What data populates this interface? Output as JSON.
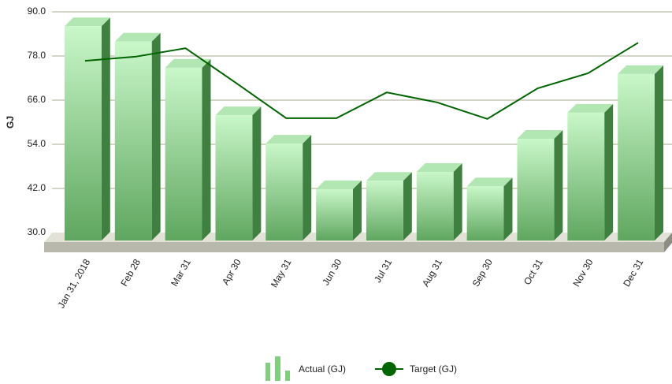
{
  "chart_data": {
    "type": "bar",
    "y_label": "GJ",
    "categories": [
      "Jan 31, 2018",
      "Feb 28",
      "Mar 31",
      "Apr 30",
      "May 31",
      "Jun 30",
      "Jul 31",
      "Aug 31",
      "Sep 30",
      "Oct 31",
      "Nov 30",
      "Dec 31"
    ],
    "series": [
      {
        "name": "Actual (GJ)",
        "type": "bar",
        "color": "#7fcf7f",
        "values": [
          86.1,
          81.9,
          74.8,
          61.9,
          54.2,
          41.8,
          44.1,
          46.5,
          42.6,
          55.5,
          62.6,
          73.1
        ]
      },
      {
        "name": "Target (GJ)",
        "type": "line",
        "color": "#006400",
        "values": [
          76.7,
          77.8,
          80.1,
          70.7,
          61.1,
          61.1,
          68.1,
          65.4,
          60.9,
          69.2,
          73.3,
          81.6
        ]
      }
    ],
    "ylim": [
      30,
      90
    ],
    "yticks": [
      {
        "value": 30,
        "label": "30.0"
      },
      {
        "value": 42,
        "label": "42.0"
      },
      {
        "value": 54,
        "label": "54.0"
      },
      {
        "value": 66,
        "label": "66.0"
      },
      {
        "value": 78,
        "label": "78.0"
      },
      {
        "value": 90,
        "label": "90.0"
      }
    ],
    "grid": true,
    "legend": "bottom"
  }
}
